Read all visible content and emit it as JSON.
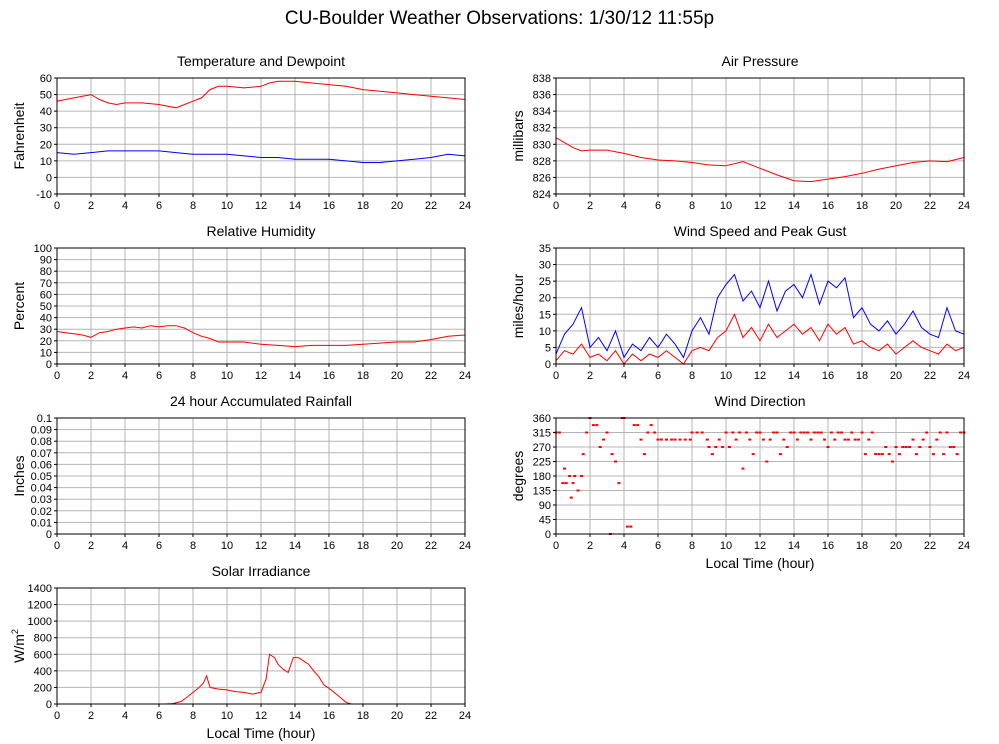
{
  "page": {
    "title": "CU-Boulder Weather Observations: 1/30/12 11:55p"
  },
  "chart_data": [
    {
      "id": "temp",
      "type": "line",
      "title": "Temperature and Dewpoint",
      "xlabel": "",
      "ylabel": "Fahrenheit",
      "xlim": [
        0,
        24
      ],
      "ylim": [
        -10,
        60
      ],
      "xticks": [
        0,
        2,
        4,
        6,
        8,
        10,
        12,
        14,
        16,
        18,
        20,
        22,
        24
      ],
      "yticks": [
        -10,
        0,
        10,
        20,
        30,
        40,
        50,
        60
      ],
      "grid": true,
      "series": [
        {
          "color": "#ff0000",
          "x": [
            0,
            0.5,
            1,
            1.5,
            2,
            2.5,
            3,
            3.5,
            4,
            5,
            6,
            6.5,
            7,
            7.5,
            8,
            8.5,
            9,
            9.5,
            10,
            11,
            12,
            12.5,
            13,
            14,
            15,
            16,
            17,
            18,
            19,
            20,
            21,
            22,
            23,
            24
          ],
          "y": [
            46,
            47,
            48,
            49,
            50,
            47,
            45,
            44,
            45,
            45,
            44,
            43,
            42,
            44,
            46,
            48,
            53,
            55,
            55,
            54,
            55,
            57,
            58,
            58,
            57,
            56,
            55,
            53,
            52,
            51,
            50,
            49,
            48,
            47
          ]
        },
        {
          "color": "#0000ff",
          "x": [
            0,
            1,
            2,
            3,
            4,
            5,
            6,
            7,
            8,
            9,
            10,
            11,
            12,
            13,
            14,
            15,
            16,
            17,
            18,
            19,
            20,
            21,
            22,
            23,
            24
          ],
          "y": [
            15,
            14,
            15,
            16,
            16,
            16,
            16,
            15,
            14,
            14,
            14,
            13,
            12,
            12,
            11,
            11,
            11,
            10,
            9,
            9,
            10,
            11,
            12,
            14,
            13
          ]
        }
      ]
    },
    {
      "id": "pressure",
      "type": "line",
      "title": "Air Pressure",
      "xlabel": "",
      "ylabel": "millibars",
      "xlim": [
        0,
        24
      ],
      "ylim": [
        824,
        838
      ],
      "xticks": [
        0,
        2,
        4,
        6,
        8,
        10,
        12,
        14,
        16,
        18,
        20,
        22,
        24
      ],
      "yticks": [
        824,
        826,
        828,
        830,
        832,
        834,
        836,
        838
      ],
      "grid": true,
      "series": [
        {
          "color": "#ff0000",
          "x": [
            0,
            0.5,
            1,
            1.5,
            2,
            3,
            4,
            5,
            6,
            7,
            8,
            9,
            10,
            11,
            12,
            13,
            14,
            15,
            16,
            17,
            18,
            19,
            20,
            21,
            22,
            23,
            24
          ],
          "y": [
            830.8,
            830.2,
            829.6,
            829.2,
            829.3,
            829.3,
            828.9,
            828.4,
            828.1,
            828.0,
            827.8,
            827.5,
            827.4,
            827.9,
            827.1,
            826.3,
            825.6,
            825.5,
            825.8,
            826.1,
            826.5,
            827.0,
            827.4,
            827.8,
            828.0,
            827.9,
            828.4
          ]
        }
      ]
    },
    {
      "id": "humidity",
      "type": "line",
      "title": "Relative Humidity",
      "xlabel": "",
      "ylabel": "Percent",
      "xlim": [
        0,
        24
      ],
      "ylim": [
        0,
        100
      ],
      "xticks": [
        0,
        2,
        4,
        6,
        8,
        10,
        12,
        14,
        16,
        18,
        20,
        22,
        24
      ],
      "yticks": [
        0,
        10,
        20,
        30,
        40,
        50,
        60,
        70,
        80,
        90,
        100
      ],
      "grid": true,
      "series": [
        {
          "color": "#ff0000",
          "x": [
            0,
            0.5,
            1,
            1.5,
            2,
            2.5,
            3,
            3.5,
            4,
            4.5,
            5,
            5.5,
            6,
            6.5,
            7,
            7.5,
            8,
            8.5,
            9,
            9.5,
            10,
            11,
            12,
            13,
            14,
            15,
            16,
            17,
            18,
            19,
            20,
            21,
            22,
            23,
            24
          ],
          "y": [
            28,
            27,
            26,
            25,
            23,
            27,
            28,
            30,
            31,
            32,
            31,
            33,
            32,
            33,
            33,
            31,
            27,
            24,
            22,
            19,
            19,
            19,
            17,
            16,
            15,
            16,
            16,
            16,
            17,
            18,
            19,
            19,
            21,
            24,
            25
          ]
        }
      ]
    },
    {
      "id": "wind",
      "type": "line",
      "title": "Wind Speed and Peak Gust",
      "xlabel": "",
      "ylabel": "miles/hour",
      "xlim": [
        0,
        24
      ],
      "ylim": [
        0,
        35
      ],
      "xticks": [
        0,
        2,
        4,
        6,
        8,
        10,
        12,
        14,
        16,
        18,
        20,
        22,
        24
      ],
      "yticks": [
        0,
        5,
        10,
        15,
        20,
        25,
        30,
        35
      ],
      "grid": true,
      "series": [
        {
          "color": "#0000ff",
          "x": [
            0,
            0.5,
            1,
            1.5,
            2,
            2.5,
            3,
            3.5,
            4,
            4.5,
            5,
            5.5,
            6,
            6.5,
            7,
            7.5,
            8,
            8.5,
            9,
            9.5,
            10,
            10.5,
            11,
            11.5,
            12,
            12.5,
            13,
            13.5,
            14,
            14.5,
            15,
            15.5,
            16,
            16.5,
            17,
            17.5,
            18,
            18.5,
            19,
            19.5,
            20,
            20.5,
            21,
            21.5,
            22,
            22.5,
            23,
            23.5,
            24
          ],
          "y": [
            3,
            9,
            12,
            17,
            5,
            8,
            4,
            10,
            2,
            6,
            4,
            8,
            5,
            9,
            6,
            2,
            10,
            14,
            9,
            20,
            24,
            27,
            19,
            22,
            17,
            25,
            16,
            22,
            24,
            20,
            27,
            18,
            25,
            23,
            26,
            14,
            17,
            12,
            10,
            13,
            9,
            12,
            16,
            11,
            9,
            8,
            17,
            10,
            9
          ]
        },
        {
          "color": "#ff0000",
          "x": [
            0,
            0.5,
            1,
            1.5,
            2,
            2.5,
            3,
            3.5,
            4,
            4.5,
            5,
            5.5,
            6,
            6.5,
            7,
            7.5,
            8,
            8.5,
            9,
            9.5,
            10,
            10.5,
            11,
            11.5,
            12,
            12.5,
            13,
            13.5,
            14,
            14.5,
            15,
            15.5,
            16,
            16.5,
            17,
            17.5,
            18,
            18.5,
            19,
            19.5,
            20,
            20.5,
            21,
            21.5,
            22,
            22.5,
            23,
            23.5,
            24
          ],
          "y": [
            1,
            4,
            3,
            6,
            2,
            3,
            1,
            4,
            0,
            3,
            1,
            3,
            2,
            4,
            2,
            0,
            4,
            5,
            4,
            8,
            10,
            15,
            8,
            11,
            7,
            12,
            8,
            10,
            12,
            9,
            11,
            7,
            12,
            9,
            11,
            6,
            7,
            5,
            4,
            6,
            3,
            5,
            7,
            5,
            4,
            3,
            6,
            4,
            5
          ]
        }
      ]
    },
    {
      "id": "rain",
      "type": "line",
      "title": "24 hour Accumulated Rainfall",
      "xlabel": "",
      "ylabel": "Inches",
      "xlim": [
        0,
        24
      ],
      "ylim": [
        0,
        0.1
      ],
      "xticks": [
        0,
        2,
        4,
        6,
        8,
        10,
        12,
        14,
        16,
        18,
        20,
        22,
        24
      ],
      "yticks": [
        0,
        0.01,
        0.02,
        0.03,
        0.04,
        0.05,
        0.06,
        0.07,
        0.08,
        0.09,
        0.1
      ],
      "grid": true,
      "series": [
        {
          "color": "#ff0000",
          "x": [
            0,
            24
          ],
          "y": [
            0,
            0
          ]
        }
      ]
    },
    {
      "id": "direction",
      "type": "scatter",
      "title": "Wind Direction",
      "xlabel": "Local Time (hour)",
      "ylabel": "degrees",
      "xlim": [
        0,
        24
      ],
      "ylim": [
        0,
        360
      ],
      "xticks": [
        0,
        2,
        4,
        6,
        8,
        10,
        12,
        14,
        16,
        18,
        20,
        22,
        24
      ],
      "yticks": [
        0,
        45,
        90,
        135,
        180,
        225,
        270,
        315,
        360
      ],
      "grid": true,
      "series": [
        {
          "color": "#ff0000",
          "x": [
            0,
            0.2,
            0.4,
            0.5,
            0.6,
            0.8,
            0.9,
            1.0,
            1.1,
            1.3,
            1.5,
            1.6,
            1.8,
            2.0,
            2.2,
            2.4,
            2.6,
            2.8,
            3.0,
            3.2,
            3.3,
            3.5,
            3.7,
            3.9,
            4.0,
            4.2,
            4.4,
            4.6,
            4.8,
            5.0,
            5.2,
            5.4,
            5.6,
            5.8,
            6.0,
            6.2,
            6.5,
            6.8,
            7.0,
            7.3,
            7.6,
            7.9,
            8.0,
            8.3,
            8.6,
            8.9,
            9.0,
            9.2,
            9.4,
            9.6,
            9.8,
            10.0,
            10.2,
            10.4,
            10.6,
            10.8,
            11.0,
            11.2,
            11.4,
            11.6,
            11.8,
            12.0,
            12.2,
            12.4,
            12.6,
            12.8,
            13.0,
            13.2,
            13.4,
            13.6,
            13.8,
            14.0,
            14.2,
            14.4,
            14.6,
            14.8,
            15.0,
            15.2,
            15.4,
            15.6,
            15.8,
            16.0,
            16.2,
            16.4,
            16.6,
            16.8,
            17.0,
            17.2,
            17.4,
            17.6,
            17.8,
            18.0,
            18.2,
            18.4,
            18.6,
            18.8,
            19.0,
            19.2,
            19.4,
            19.6,
            19.8,
            20.0,
            20.2,
            20.4,
            20.6,
            20.8,
            21.0,
            21.2,
            21.4,
            21.6,
            21.8,
            22.0,
            22.2,
            22.4,
            22.6,
            22.8,
            23.0,
            23.2,
            23.4,
            23.6,
            23.8,
            24.0
          ],
          "y": [
            315,
            315,
            158,
            203,
            158,
            180,
            113,
            158,
            180,
            135,
            180,
            248,
            315,
            360,
            338,
            338,
            270,
            293,
            315,
            0,
            248,
            225,
            158,
            360,
            360,
            23,
            23,
            338,
            338,
            293,
            248,
            315,
            338,
            315,
            293,
            293,
            293,
            293,
            293,
            293,
            293,
            293,
            315,
            315,
            315,
            293,
            270,
            248,
            270,
            293,
            270,
            315,
            270,
            315,
            293,
            315,
            203,
            315,
            293,
            248,
            315,
            315,
            293,
            225,
            293,
            315,
            315,
            248,
            293,
            270,
            315,
            315,
            293,
            315,
            315,
            315,
            293,
            315,
            315,
            315,
            293,
            270,
            315,
            293,
            315,
            315,
            293,
            293,
            315,
            293,
            293,
            315,
            248,
            293,
            315,
            248,
            248,
            248,
            270,
            248,
            225,
            270,
            248,
            270,
            270,
            270,
            293,
            248,
            270,
            293,
            315,
            270,
            248,
            293,
            315,
            248,
            315,
            270,
            270,
            248,
            315,
            315
          ]
        }
      ]
    },
    {
      "id": "solar",
      "type": "line",
      "title": "Solar Irradiance",
      "xlabel": "Local Time (hour)",
      "ylabel": "W/m",
      "ylabel_sup": "2",
      "xlim": [
        0,
        24
      ],
      "ylim": [
        0,
        1400
      ],
      "xticks": [
        0,
        2,
        4,
        6,
        8,
        10,
        12,
        14,
        16,
        18,
        20,
        22,
        24
      ],
      "yticks": [
        0,
        200,
        400,
        600,
        800,
        1000,
        1200,
        1400
      ],
      "grid": true,
      "series": [
        {
          "color": "#ff0000",
          "x": [
            0,
            6.3,
            6.8,
            7.3,
            7.7,
            8.0,
            8.3,
            8.6,
            8.8,
            9.0,
            9.5,
            10.0,
            10.5,
            11.0,
            11.5,
            12.0,
            12.3,
            12.5,
            12.8,
            13.0,
            13.3,
            13.6,
            13.9,
            14.2,
            14.5,
            14.8,
            15.1,
            15.4,
            15.7,
            16.0,
            16.3,
            16.6,
            17.0,
            17.3,
            24
          ],
          "y": [
            0,
            0,
            5,
            30,
            90,
            140,
            190,
            250,
            340,
            200,
            180,
            170,
            150,
            140,
            120,
            140,
            300,
            600,
            560,
            480,
            420,
            380,
            560,
            560,
            520,
            480,
            400,
            330,
            230,
            190,
            140,
            90,
            20,
            0,
            0
          ]
        }
      ]
    }
  ]
}
